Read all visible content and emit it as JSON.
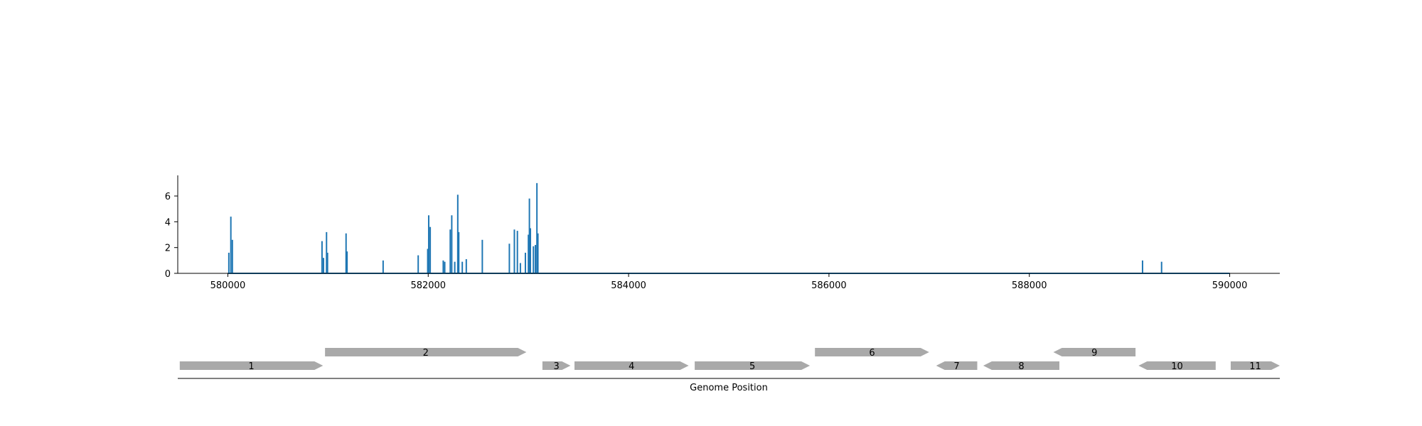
{
  "chart_data": [
    {
      "type": "bar",
      "title": "",
      "xlabel": "",
      "ylabel": "",
      "xlim": [
        579500,
        590500
      ],
      "ylim": [
        0,
        7.6
      ],
      "x_ticks": [
        580000,
        582000,
        584000,
        586000,
        588000,
        590000
      ],
      "y_ticks": [
        0,
        2,
        4,
        6
      ],
      "grid": false,
      "series_color": "#1f77b4",
      "baseline_range": [
        580000,
        590000
      ],
      "points": [
        {
          "x": 580010,
          "y": 1.6
        },
        {
          "x": 580030,
          "y": 4.4
        },
        {
          "x": 580045,
          "y": 2.6
        },
        {
          "x": 580940,
          "y": 2.5
        },
        {
          "x": 580955,
          "y": 1.2
        },
        {
          "x": 580985,
          "y": 3.2
        },
        {
          "x": 580995,
          "y": 1.6
        },
        {
          "x": 581180,
          "y": 3.1
        },
        {
          "x": 581190,
          "y": 1.7
        },
        {
          "x": 581550,
          "y": 1.0
        },
        {
          "x": 581900,
          "y": 1.4
        },
        {
          "x": 581995,
          "y": 1.9
        },
        {
          "x": 582005,
          "y": 4.5
        },
        {
          "x": 582020,
          "y": 3.6
        },
        {
          "x": 582150,
          "y": 1.0
        },
        {
          "x": 582165,
          "y": 0.9
        },
        {
          "x": 582220,
          "y": 3.4
        },
        {
          "x": 582235,
          "y": 4.5
        },
        {
          "x": 582265,
          "y": 0.9
        },
        {
          "x": 582295,
          "y": 6.1
        },
        {
          "x": 582305,
          "y": 3.2
        },
        {
          "x": 582340,
          "y": 0.9
        },
        {
          "x": 582380,
          "y": 1.1
        },
        {
          "x": 582540,
          "y": 2.6
        },
        {
          "x": 582810,
          "y": 2.3
        },
        {
          "x": 582860,
          "y": 3.4
        },
        {
          "x": 582890,
          "y": 3.3
        },
        {
          "x": 582920,
          "y": 0.8
        },
        {
          "x": 582970,
          "y": 1.6
        },
        {
          "x": 583000,
          "y": 3.0
        },
        {
          "x": 583010,
          "y": 5.8
        },
        {
          "x": 583020,
          "y": 3.5
        },
        {
          "x": 583050,
          "y": 2.1
        },
        {
          "x": 583070,
          "y": 2.2
        },
        {
          "x": 583085,
          "y": 7.0
        },
        {
          "x": 583095,
          "y": 3.1
        },
        {
          "x": 589130,
          "y": 1.0
        },
        {
          "x": 589320,
          "y": 0.9
        }
      ]
    },
    {
      "type": "gene_track",
      "title": "",
      "xlabel": "Genome Position",
      "xlim": [
        579500,
        590500
      ],
      "feature_color": "#a9a9a9",
      "features": [
        {
          "label": "1",
          "start": 579520,
          "end": 580950,
          "strand": "+",
          "row": 0
        },
        {
          "label": "2",
          "start": 580970,
          "end": 582980,
          "strand": "+",
          "row": 1
        },
        {
          "label": "3",
          "start": 583140,
          "end": 583420,
          "strand": "+",
          "row": 0
        },
        {
          "label": "4",
          "start": 583460,
          "end": 584600,
          "strand": "+",
          "row": 0
        },
        {
          "label": "5",
          "start": 584660,
          "end": 585810,
          "strand": "+",
          "row": 0
        },
        {
          "label": "6",
          "start": 585860,
          "end": 587000,
          "strand": "+",
          "row": 1
        },
        {
          "label": "7",
          "start": 587070,
          "end": 587480,
          "strand": "-",
          "row": 0
        },
        {
          "label": "8",
          "start": 587540,
          "end": 588300,
          "strand": "-",
          "row": 0
        },
        {
          "label": "9",
          "start": 588240,
          "end": 589060,
          "strand": "-",
          "row": 1
        },
        {
          "label": "10",
          "start": 589090,
          "end": 589860,
          "strand": "-",
          "row": 0
        },
        {
          "label": "11",
          "start": 590010,
          "end": 590500,
          "strand": "+",
          "row": 0
        }
      ]
    }
  ]
}
